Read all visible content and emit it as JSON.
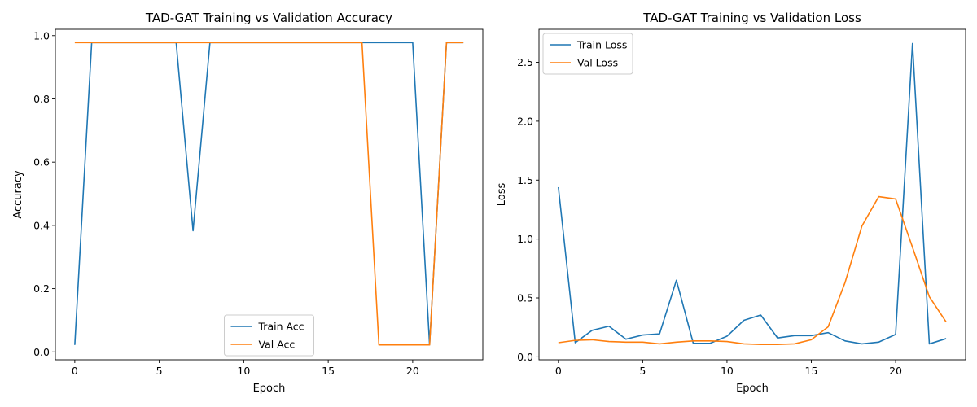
{
  "chart_data": [
    {
      "type": "line",
      "title": "TAD-GAT Training vs Validation Accuracy",
      "xlabel": "Epoch",
      "ylabel": "Accuracy",
      "xlim": [
        -1.15,
        24.15
      ],
      "ylim": [
        -0.025,
        1.02
      ],
      "xticks": [
        0,
        5,
        10,
        15,
        20
      ],
      "xtick_labels": [
        "0",
        "5",
        "10",
        "15",
        "20"
      ],
      "yticks": [
        0.0,
        0.2,
        0.4,
        0.6,
        0.8,
        1.0
      ],
      "ytick_labels": [
        "0.0",
        "0.2",
        "0.4",
        "0.6",
        "0.8",
        "1.0"
      ],
      "grid": false,
      "legend_position": "lower-center",
      "x": [
        0,
        1,
        2,
        3,
        4,
        5,
        6,
        7,
        8,
        9,
        10,
        11,
        12,
        13,
        14,
        15,
        16,
        17,
        18,
        19,
        20,
        21,
        22,
        23
      ],
      "series": [
        {
          "name": "Train Acc",
          "color": "#1f77b4",
          "values": [
            0.022,
            0.978,
            0.978,
            0.978,
            0.978,
            0.978,
            0.978,
            0.383,
            0.978,
            0.978,
            0.978,
            0.978,
            0.978,
            0.978,
            0.978,
            0.978,
            0.978,
            0.978,
            0.978,
            0.978,
            0.978,
            0.022,
            0.978,
            0.978
          ]
        },
        {
          "name": "Val Acc",
          "color": "#ff7f0e",
          "values": [
            0.978,
            0.978,
            0.978,
            0.978,
            0.978,
            0.978,
            0.978,
            0.978,
            0.978,
            0.978,
            0.978,
            0.978,
            0.978,
            0.978,
            0.978,
            0.978,
            0.978,
            0.978,
            0.022,
            0.022,
            0.022,
            0.022,
            0.978,
            0.978
          ]
        }
      ]
    },
    {
      "type": "line",
      "title": "TAD-GAT Training vs Validation Loss",
      "xlabel": "Epoch",
      "ylabel": "Loss",
      "xlim": [
        -1.15,
        24.15
      ],
      "ylim": [
        -0.025,
        2.78
      ],
      "xticks": [
        0,
        5,
        10,
        15,
        20
      ],
      "xtick_labels": [
        "0",
        "5",
        "10",
        "15",
        "20"
      ],
      "yticks": [
        0.0,
        0.5,
        1.0,
        1.5,
        2.0,
        2.5
      ],
      "ytick_labels": [
        "0.0",
        "0.5",
        "1.0",
        "1.5",
        "2.0",
        "2.5"
      ],
      "grid": false,
      "legend_position": "upper-left",
      "x": [
        0,
        1,
        2,
        3,
        4,
        5,
        6,
        7,
        8,
        9,
        10,
        11,
        12,
        13,
        14,
        15,
        16,
        17,
        18,
        19,
        20,
        21,
        22,
        23
      ],
      "series": [
        {
          "name": "Train Loss",
          "color": "#1f77b4",
          "values": [
            1.44,
            0.12,
            0.225,
            0.26,
            0.15,
            0.185,
            0.195,
            0.65,
            0.115,
            0.115,
            0.175,
            0.31,
            0.355,
            0.16,
            0.18,
            0.18,
            0.205,
            0.135,
            0.11,
            0.125,
            0.19,
            2.66,
            0.11,
            0.155
          ]
        },
        {
          "name": "Val Loss",
          "color": "#ff7f0e",
          "values": [
            0.12,
            0.14,
            0.145,
            0.13,
            0.125,
            0.125,
            0.11,
            0.125,
            0.135,
            0.135,
            0.13,
            0.11,
            0.105,
            0.105,
            0.11,
            0.145,
            0.255,
            0.63,
            1.11,
            1.36,
            1.34,
            0.93,
            0.51,
            0.295
          ]
        }
      ]
    }
  ]
}
